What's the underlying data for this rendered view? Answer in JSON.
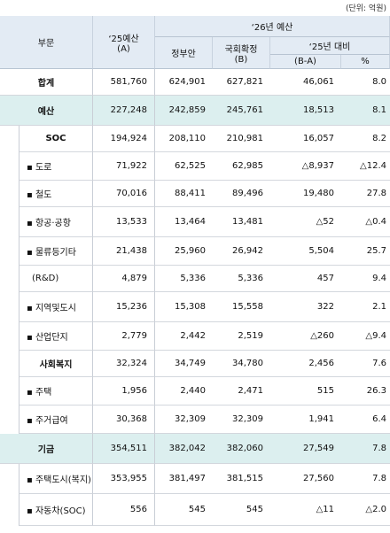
{
  "unit": "(단위: 억원)",
  "header": {
    "section": "부문",
    "prev": "‘25예산",
    "prev_sub": "(A)",
    "budget26": "‘26년 예산",
    "gov": "정부안",
    "assembly": "국회확정",
    "assembly_sub": "(B)",
    "vs25": "‘25년 대비",
    "diff": "(B-A)",
    "pct": "%"
  },
  "rows": [
    [
      "합계",
      "581,760",
      "624,901",
      "627,821",
      "46,061",
      "8.0"
    ],
    [
      "예산",
      "227,248",
      "242,859",
      "245,761",
      "18,513",
      "8.1"
    ],
    [
      "SOC",
      "194,924",
      "208,110",
      "210,981",
      "16,057",
      "8.2"
    ],
    [
      "▪ 도로",
      "71,922",
      "62,525",
      "62,985",
      "△8,937",
      "△12.4"
    ],
    [
      "▪ 철도",
      "70,016",
      "88,411",
      "89,496",
      "19,480",
      "27.8"
    ],
    [
      "▪ 항공·공항",
      "13,533",
      "13,464",
      "13,481",
      "△52",
      "△0.4"
    ],
    [
      "▪ 물류등기타",
      "21,438",
      "25,960",
      "26,942",
      "5,504",
      "25.7"
    ],
    [
      "(R&D)",
      "4,879",
      "5,336",
      "5,336",
      "457",
      "9.4"
    ],
    [
      "▪ 지역및도시",
      "15,236",
      "15,308",
      "15,558",
      "322",
      "2.1"
    ],
    [
      "▪ 산업단지",
      "2,779",
      "2,442",
      "2,519",
      "△260",
      "△9.4"
    ],
    [
      "사회복지",
      "32,324",
      "34,749",
      "34,780",
      "2,456",
      "7.6"
    ],
    [
      "▪ 주택",
      "1,956",
      "2,440",
      "2,471",
      "515",
      "26.3"
    ],
    [
      "▪ 주거급여",
      "30,368",
      "32,309",
      "32,309",
      "1,941",
      "6.4"
    ],
    [
      "기금",
      "354,511",
      "382,042",
      "382,060",
      "27,549",
      "7.8"
    ],
    [
      "▪ 주택도시(복지)",
      "353,955",
      "381,497",
      "381,515",
      "27,560",
      "7.8"
    ],
    [
      "▪ 자동차(SOC)",
      "556",
      "545",
      "545",
      "△11",
      "△2.0"
    ]
  ]
}
